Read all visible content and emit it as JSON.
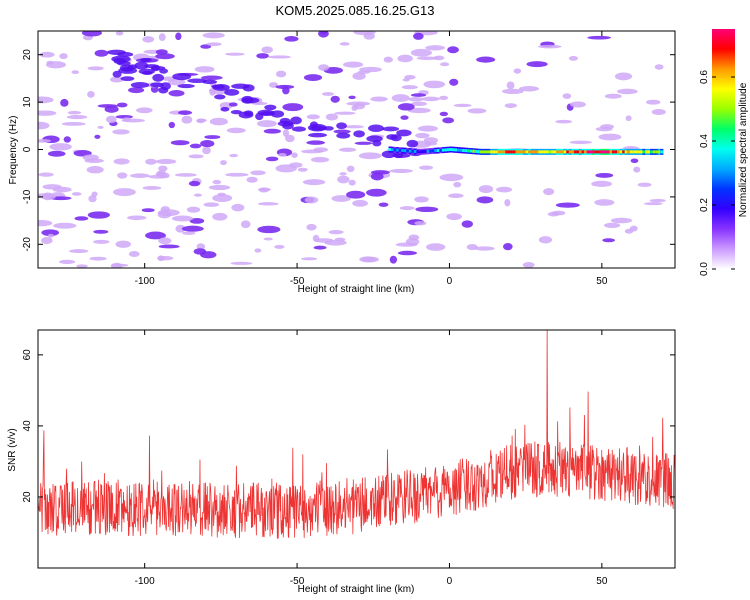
{
  "title": "KOM5.2025.085.16.25.G13",
  "chart_data": [
    {
      "type": "heatmap",
      "xlabel": "Height of straight line (km)",
      "ylabel": "Frequency (Hz)",
      "xlim": [
        -135,
        74
      ],
      "ylim": [
        -25,
        25
      ],
      "x_ticks": [
        -100,
        -50,
        0,
        50
      ],
      "x_tick_labels": [
        "-100",
        "-50",
        "0",
        "50"
      ],
      "y_ticks": [
        -20,
        -10,
        0,
        10,
        20
      ],
      "y_tick_labels": [
        "-20",
        "-10",
        "0",
        "10",
        "20"
      ],
      "colorbar": {
        "label": "Normalized spectral amplitude",
        "range": [
          0,
          0.75
        ],
        "ticks": [
          0.0,
          0.2,
          0.4,
          0.6
        ],
        "tick_labels": [
          "0.0",
          "0.2",
          "0.4",
          "0.6"
        ],
        "colormap": [
          "#ffffff",
          "#cc99ff",
          "#8833ff",
          "#3300ff",
          "#0033ff",
          "#00aaff",
          "#00ffee",
          "#00ff66",
          "#99ff00",
          "#ffff00",
          "#ff9900",
          "#ff0000",
          "#ff0077"
        ]
      },
      "ridge_line": [
        {
          "x": -20,
          "y": 0,
          "amp": 0.3
        },
        {
          "x": -10,
          "y": -0.5,
          "amp": 0.25
        },
        {
          "x": 0,
          "y": 0,
          "amp": 0.35
        },
        {
          "x": 10,
          "y": -0.5,
          "amp": 0.45
        },
        {
          "x": 20,
          "y": -0.5,
          "amp": 0.7
        },
        {
          "x": 30,
          "y": -0.5,
          "amp": 0.55
        },
        {
          "x": 40,
          "y": -0.5,
          "amp": 0.65
        },
        {
          "x": 50,
          "y": -0.5,
          "amp": 0.75
        },
        {
          "x": 60,
          "y": -0.5,
          "amp": 0.55
        },
        {
          "x": 70,
          "y": -0.5,
          "amp": 0.45
        }
      ]
    },
    {
      "type": "line",
      "xlabel": "Height of straight line (km)",
      "ylabel": "SNR (v/v)",
      "xlim": [
        -135,
        74
      ],
      "ylim": [
        0,
        67
      ],
      "x_ticks": [
        -100,
        -50,
        0,
        50
      ],
      "x_tick_labels": [
        "-100",
        "-50",
        "0",
        "50"
      ],
      "y_ticks": [
        20,
        40,
        60
      ],
      "y_tick_labels": [
        "20",
        "40",
        "60"
      ],
      "series": [
        {
          "color": "#ee3333",
          "trend_x": [
            -135,
            -100,
            -50,
            -25,
            0,
            25,
            50,
            74
          ],
          "trend_y": [
            17,
            17,
            16,
            18,
            22,
            28,
            27,
            24
          ],
          "noise_amplitude": 8,
          "samples": 1400,
          "peak": {
            "x": 32,
            "y": 67
          }
        }
      ]
    }
  ]
}
